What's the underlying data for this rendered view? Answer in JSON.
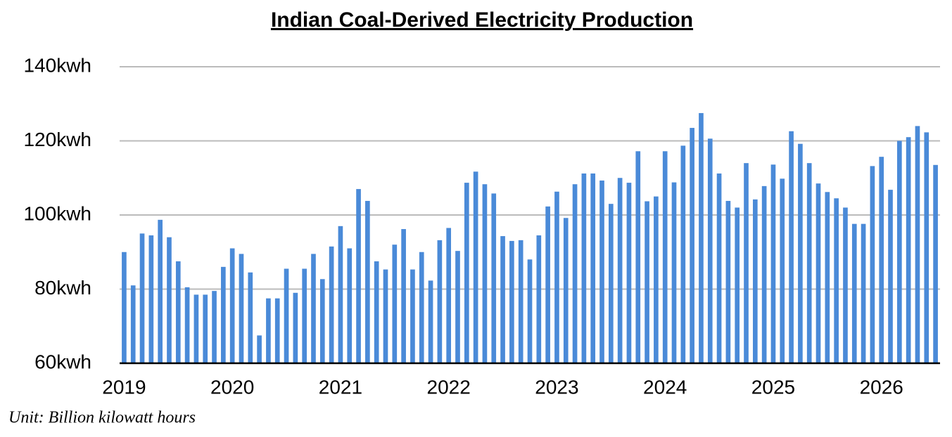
{
  "chart_data": {
    "type": "bar",
    "title": "Indian Coal-Derived Electricity Production",
    "note": "Unit: Billion kilowatt hours",
    "categories": [
      "2019",
      null,
      null,
      null,
      null,
      null,
      null,
      null,
      null,
      null,
      null,
      null,
      "2020",
      null,
      null,
      null,
      null,
      null,
      null,
      null,
      null,
      null,
      null,
      null,
      "2021",
      null,
      null,
      null,
      null,
      null,
      null,
      null,
      null,
      null,
      null,
      null,
      "2022",
      null,
      null,
      null,
      null,
      null,
      null,
      null,
      null,
      null,
      null,
      null,
      "2023",
      null,
      null,
      null,
      null,
      null,
      null,
      null,
      null,
      null,
      null,
      null,
      "2024",
      null,
      null,
      null,
      null,
      null,
      null,
      null,
      null,
      null,
      null,
      null,
      "2025",
      null,
      null,
      null,
      null,
      null,
      null,
      null,
      null,
      null,
      null,
      null,
      "2026",
      null,
      null,
      null,
      null,
      null,
      null
    ],
    "values": [
      90,
      81,
      95,
      94.5,
      98.7,
      94,
      87.5,
      80.5,
      78.5,
      78.5,
      79.5,
      86,
      91,
      89.5,
      84.5,
      67.5,
      77.5,
      77.5,
      85.5,
      79,
      85.5,
      89.5,
      82.7,
      91.5,
      97,
      91,
      107,
      103.8,
      87.5,
      85.3,
      92,
      96.2,
      85.3,
      90,
      82.3,
      93.2,
      96.5,
      90.3,
      108.7,
      111.7,
      108.3,
      105.8,
      94.3,
      93,
      93.2,
      88,
      94.5,
      102.3,
      106.3,
      99.2,
      108.3,
      111.2,
      111.2,
      109.3,
      103,
      110,
      108.7,
      117.2,
      103.7,
      105,
      117.2,
      108.8,
      118.7,
      123.5,
      127.5,
      120.6,
      111.2,
      103.8,
      102,
      114,
      104.2,
      107.8,
      113.6,
      109.8,
      122.6,
      119.2,
      114,
      108.5,
      106.2,
      104.5,
      102,
      97.6,
      97.6,
      113.2,
      115.7,
      106.8,
      120,
      121,
      124,
      122.3,
      113.5
    ],
    "color": "#4a8ad8",
    "ylim": [
      60,
      140
    ],
    "yticks": [
      {
        "value": 60,
        "label": "60kwh"
      },
      {
        "value": 80,
        "label": "80kwh"
      },
      {
        "value": 100,
        "label": "100kwh"
      },
      {
        "value": 120,
        "label": "120kwh"
      },
      {
        "value": 140,
        "label": "140kwh"
      }
    ],
    "grid": true
  }
}
